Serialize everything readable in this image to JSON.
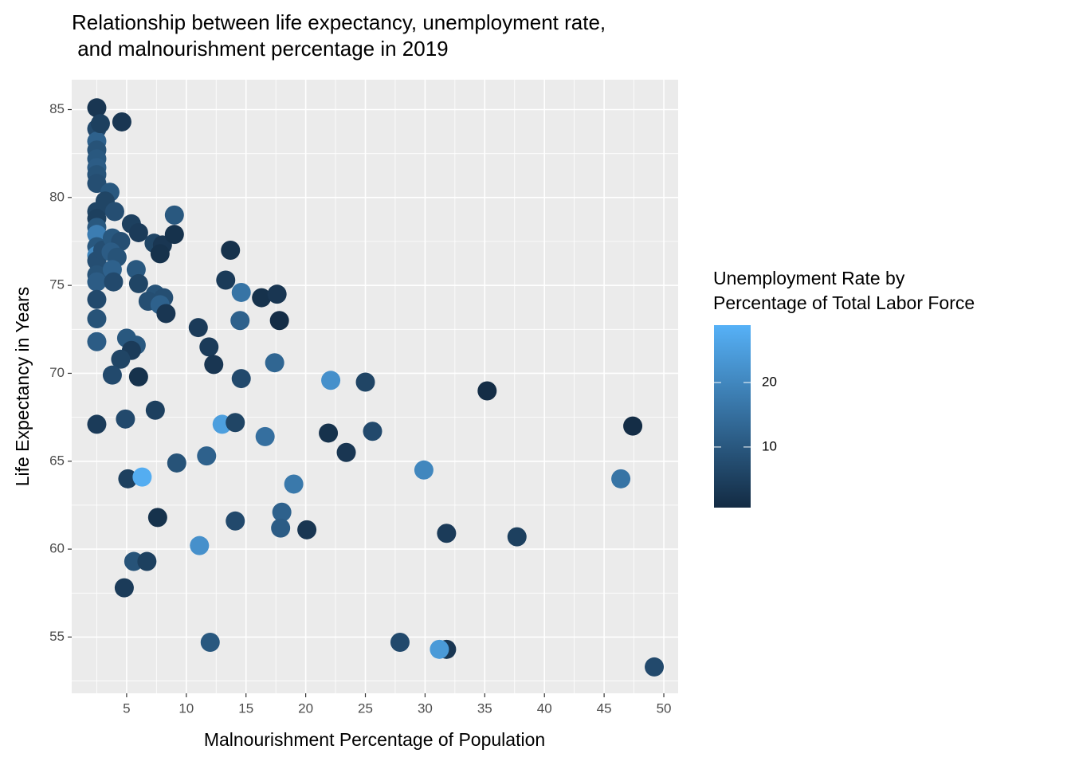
{
  "chart_data": {
    "type": "scatter",
    "title": [
      "Relationship between life expectancy, unemployment rate,",
      "  and malnourishment percentage in 2019"
    ],
    "x_label": "Malnourishment Percentage of Population",
    "y_label": "Life Expectancy in Years",
    "xlim": [
      0.4,
      51.2
    ],
    "ylim": [
      51.8,
      86.7
    ],
    "xticks": [
      5,
      10,
      15,
      20,
      25,
      30,
      35,
      40,
      45,
      50
    ],
    "yticks": [
      55,
      60,
      65,
      70,
      75,
      80,
      85
    ],
    "grid": true,
    "minor_grid": true,
    "color_scale": {
      "title": [
        "Unemployment Rate by",
        "Percentage of Total Labor Force"
      ],
      "low": "#132B43",
      "high": "#56B1F7",
      "lim": [
        0.6,
        28.9
      ],
      "ticks": [
        10,
        20
      ]
    },
    "x": [
      2.5,
      2.5,
      2.5,
      2.5,
      2.5,
      2.5,
      2.5,
      2.5,
      2.5,
      2.5,
      2.5,
      2.5,
      2.5,
      2.5,
      2.5,
      2.5,
      2.5,
      2.5,
      2.5,
      2.5,
      2.5,
      4.6,
      2.8,
      3.6,
      3.2,
      4.0,
      3.0,
      5.4,
      6.0,
      7.3,
      9.0,
      8.0,
      9.0,
      7.8,
      3.8,
      4.5,
      3.7,
      4.2,
      3.8,
      5.8,
      3.9,
      6.0,
      7.4,
      6.8,
      8.1,
      7.8,
      8.3,
      13.7,
      13.3,
      14.6,
      16.3,
      17.6,
      14.5,
      17.8,
      11.0,
      5.0,
      5.8,
      5.4,
      4.5,
      11.9,
      12.3,
      17.4,
      3.8,
      6.0,
      14.6,
      22.1,
      25.0,
      35.2,
      47.4,
      7.4,
      4.9,
      13.0,
      14.1,
      16.6,
      21.9,
      25.6,
      23.4,
      9.2,
      11.7,
      5.1,
      6.3,
      29.9,
      46.4,
      19.0,
      18.0,
      7.6,
      14.1,
      17.9,
      20.1,
      31.8,
      37.7,
      11.1,
      5.6,
      6.7,
      4.8,
      12.0,
      27.9,
      31.8,
      31.2,
      49.2
    ],
    "values": [
      85.1,
      83.9,
      83.2,
      82.7,
      82.2,
      81.7,
      81.3,
      80.8,
      79.2,
      78.8,
      78.3,
      77.9,
      77.2,
      76.7,
      76.4,
      75.6,
      75.2,
      74.2,
      73.1,
      71.8,
      67.1,
      84.3,
      84.2,
      80.3,
      79.8,
      79.2,
      77.0,
      78.5,
      78.0,
      77.4,
      79.0,
      77.3,
      77.9,
      76.8,
      77.7,
      77.5,
      76.9,
      76.6,
      75.9,
      75.9,
      75.2,
      75.1,
      74.5,
      74.1,
      74.3,
      73.9,
      73.4,
      77.0,
      75.3,
      74.6,
      74.3,
      74.5,
      73.0,
      73.0,
      72.6,
      72.0,
      71.6,
      71.3,
      70.8,
      71.5,
      70.5,
      70.6,
      69.9,
      69.8,
      69.7,
      69.6,
      69.5,
      69.0,
      67.0,
      67.9,
      67.4,
      67.1,
      67.2,
      66.4,
      66.6,
      66.7,
      65.5,
      64.9,
      65.3,
      64.0,
      64.1,
      64.5,
      64.0,
      63.7,
      62.1,
      61.8,
      61.6,
      61.2,
      61.1,
      60.9,
      60.7,
      60.2,
      59.3,
      59.3,
      57.8,
      54.7,
      54.7,
      54.3,
      54.3,
      53.3
    ],
    "color_values": [
      3,
      7,
      12,
      9,
      10,
      11,
      9,
      8,
      6,
      5,
      10,
      18,
      10,
      20,
      8,
      9,
      11,
      7,
      9,
      11,
      4,
      3,
      5,
      10,
      6,
      8,
      8,
      5,
      4,
      6,
      10,
      3,
      2,
      2,
      10,
      8,
      11,
      9,
      12,
      10,
      7,
      6,
      9,
      8,
      8,
      12,
      3,
      2,
      4,
      16,
      2,
      3,
      12,
      1,
      4,
      10,
      10,
      4,
      6,
      4,
      3,
      13,
      7,
      2,
      7,
      22,
      6,
      1,
      1,
      5,
      7,
      25,
      6,
      15,
      2,
      7,
      3,
      9,
      12,
      5,
      28,
      20,
      16,
      17,
      12,
      2,
      7,
      11,
      3,
      4,
      5,
      22,
      9,
      5,
      4,
      10,
      7,
      3,
      24,
      7
    ]
  }
}
